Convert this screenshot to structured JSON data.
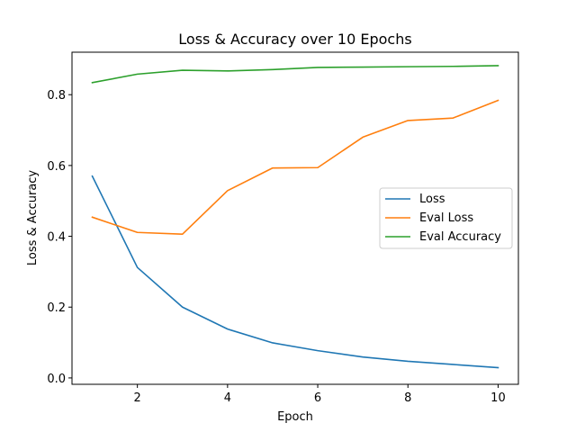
{
  "chart_data": {
    "type": "line",
    "title": "Loss & Accuracy over 10 Epochs",
    "xlabel": "Epoch",
    "ylabel": "Loss & Accuracy",
    "x": [
      1,
      2,
      3,
      4,
      5,
      6,
      7,
      8,
      9,
      10
    ],
    "xlim": [
      0.55,
      10.45
    ],
    "ylim": [
      -0.018,
      0.92
    ],
    "xticks": [
      2,
      4,
      6,
      8,
      10
    ],
    "yticks": [
      0.0,
      0.2,
      0.4,
      0.6,
      0.8
    ],
    "xtick_labels": [
      "2",
      "4",
      "6",
      "8",
      "10"
    ],
    "ytick_labels": [
      "0.0",
      "0.2",
      "0.4",
      "0.6",
      "0.8"
    ],
    "grid": false,
    "legend_position": "center-right",
    "series": [
      {
        "name": "Loss",
        "color": "#1f77b4",
        "values": [
          0.57,
          0.312,
          0.2,
          0.138,
          0.099,
          0.077,
          0.059,
          0.047,
          0.038,
          0.029
        ]
      },
      {
        "name": "Eval Loss",
        "color": "#ff7f0e",
        "values": [
          0.454,
          0.411,
          0.406,
          0.529,
          0.593,
          0.594,
          0.68,
          0.727,
          0.734,
          0.784
        ]
      },
      {
        "name": "Eval Accuracy",
        "color": "#2ca02c",
        "values": [
          0.834,
          0.858,
          0.869,
          0.867,
          0.871,
          0.877,
          0.878,
          0.879,
          0.88,
          0.882
        ]
      }
    ]
  }
}
